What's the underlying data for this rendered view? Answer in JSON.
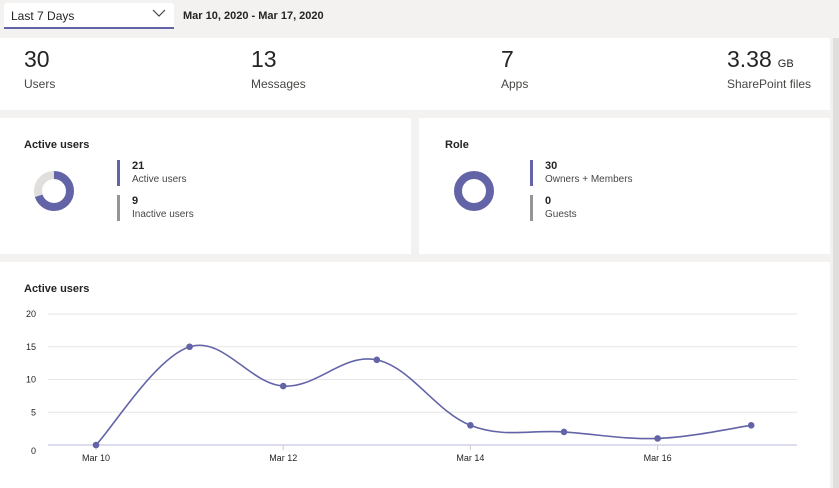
{
  "filter": {
    "selected": "Last 7 Days",
    "date_range": "Mar 10, 2020 - Mar 17, 2020"
  },
  "stats": [
    {
      "value": "30",
      "unit": "",
      "label": "Users"
    },
    {
      "value": "13",
      "unit": "",
      "label": "Messages"
    },
    {
      "value": "7",
      "unit": "",
      "label": "Apps"
    },
    {
      "value": "3.38",
      "unit": "GB",
      "label": "SharePoint files"
    }
  ],
  "active_users_card": {
    "title": "Active users",
    "items": [
      {
        "value": "21",
        "label": "Active users"
      },
      {
        "value": "9",
        "label": "Inactive users"
      }
    ]
  },
  "role_card": {
    "title": "Role",
    "items": [
      {
        "value": "30",
        "label": "Owners + Members"
      },
      {
        "value": "0",
        "label": "Guests"
      }
    ]
  },
  "colors": {
    "accent": "#6264a7",
    "grey": "#e1dfdd"
  },
  "chart_data": {
    "type": "line",
    "title": "Active users",
    "x": [
      "Mar 10",
      "Mar 11",
      "Mar 12",
      "Mar 13",
      "Mar 14",
      "Mar 15",
      "Mar 16",
      "Mar 17"
    ],
    "values": [
      0,
      15,
      9,
      13,
      3,
      2,
      1,
      3
    ],
    "x_tick_labels": [
      "Mar 10",
      "Mar 12",
      "Mar 14",
      "Mar 16"
    ],
    "y_ticks": [
      0,
      5,
      10,
      15,
      20
    ],
    "ylim": [
      0,
      20
    ],
    "grid": true
  }
}
